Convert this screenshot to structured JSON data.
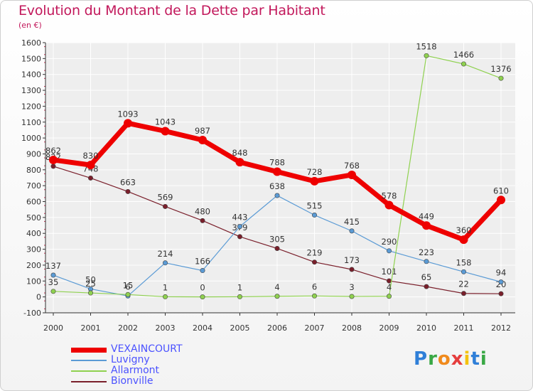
{
  "title": "Evolution du Montant de la Dette par Habitant",
  "unit": "(en €)",
  "logo": {
    "letters": [
      "P",
      "r",
      "o",
      "x",
      "i",
      "t",
      "i"
    ],
    "colors": [
      "#2f7fd8",
      "#39a845",
      "#f08a1c",
      "#e53d3d",
      "#f4c20d",
      "#2f7fd8",
      "#39a845"
    ]
  },
  "chart_data": {
    "type": "line",
    "categories": [
      "2000",
      "2001",
      "2002",
      "2003",
      "2004",
      "2005",
      "2006",
      "2007",
      "2008",
      "2009",
      "2010",
      "2011",
      "2012"
    ],
    "ylim": [
      -100,
      1600
    ],
    "yticks": [
      -100,
      0,
      100,
      200,
      300,
      400,
      500,
      600,
      700,
      800,
      900,
      1000,
      1100,
      1200,
      1300,
      1400,
      1500,
      1600
    ],
    "grid": true,
    "legend_position": "bottom-left",
    "series": [
      {
        "name": "Bionville",
        "color": "#7a1f2b",
        "values": [
          822,
          748,
          663,
          569,
          480,
          379,
          305,
          219,
          173,
          101,
          65,
          22,
          20
        ],
        "labels": [
          "822",
          "748",
          "663",
          "569",
          "480",
          "379",
          "305",
          "219",
          "173",
          "101",
          "65",
          "22",
          "20"
        ]
      },
      {
        "name": "Luvigny",
        "color": "#5b9bd5",
        "values": [
          137,
          50,
          6,
          214,
          166,
          443,
          638,
          515,
          415,
          290,
          223,
          158,
          94
        ],
        "labels": [
          "137",
          "50",
          "6",
          "214",
          "166",
          "443",
          "638",
          "515",
          "415",
          "290",
          "223",
          "158",
          "94"
        ]
      },
      {
        "name": "Allarmont",
        "color": "#8fd14f",
        "values": [
          35,
          25,
          15,
          1,
          0,
          1,
          4,
          6,
          3,
          4,
          1518,
          1466,
          1376
        ],
        "labels": [
          "35",
          "25",
          "15",
          "1",
          "0",
          "1",
          "4",
          "6",
          "3",
          "4",
          "1518",
          "1466",
          "1376"
        ]
      },
      {
        "name": "VEXAINCOURT",
        "color": "#ee0000",
        "values": [
          862,
          830,
          1093,
          1043,
          987,
          848,
          788,
          728,
          768,
          578,
          449,
          360,
          610
        ],
        "labels": [
          "862",
          "830",
          "1093",
          "1043",
          "987",
          "848",
          "788",
          "728",
          "768",
          "578",
          "449",
          "360",
          "610"
        ]
      }
    ]
  }
}
